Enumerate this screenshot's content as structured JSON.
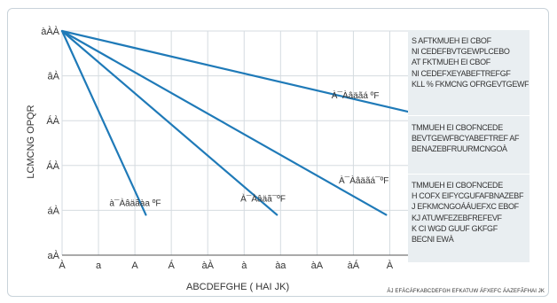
{
  "colors": {
    "series": "#1f7ab8",
    "grid": "#d5dbe0",
    "panel": "#e9eef1"
  },
  "chart_data": {
    "type": "line",
    "xlabel": "ABCDEFGHE ( HAI JK)",
    "ylabel": "LCMCNG OPQR",
    "x_tick_labels": [
      "À",
      "a",
      "A",
      "Á",
      "àÀ",
      "à",
      "àa",
      "àA",
      "àÁ",
      "À"
    ],
    "y_tick_labels": [
      "aÀ",
      "áÀ",
      "ÁÀ",
      "ÁÀ",
      "âÀ",
      "àÀÀ"
    ],
    "xlim": [
      0,
      9.5
    ],
    "ylim": [
      0,
      5
    ],
    "series": [
      {
        "label": "À¯Àâäãá ºF",
        "points": [
          [
            0,
            5
          ],
          [
            9.5,
            3.2
          ]
        ]
      },
      {
        "label": "À¯Àâäãá¯ºF",
        "points": [
          [
            0,
            5
          ],
          [
            8.9,
            0.9
          ]
        ]
      },
      {
        "label": "À¯Àâäã¯ºF",
        "points": [
          [
            0,
            5
          ],
          [
            5.9,
            0.9
          ]
        ]
      },
      {
        "label": "à¯Àâäãàa ºF",
        "points": [
          [
            0,
            5
          ],
          [
            2.3,
            0.9
          ]
        ]
      }
    ]
  },
  "notes": [
    [
      "S AFTKMUEH EI CBOF",
      "NI CEDEFBVTGEWPLCEBO",
      "AT FKTMUEH EI CBOF",
      "NI CEDEFXEYABEFTREFGF",
      "KLL % FKMCNG OFRGEVTGEWF"
    ],
    [
      "TMMUEH EI CBOFNCEDE",
      "BEVTGEWFBCYABEFTREF AF",
      "BENAZEBFRUURMCNGOÀ"
    ],
    [
      "TMMUEH EI CBOFNCEDE",
      "H COFX EIFYCGUFAFBNAZEBF",
      "J EFKMCNGOÁÁUEFXC EBOF",
      "KJ ATUWFEZEBFREFEVF",
      "K CI WGD GUUF GKFGF",
      "BECNI EWÀ"
    ]
  ],
  "footnote": "ÁJ EFÀCÁFKABCDEFGH EFKATUW ÁFXEFC ÁAZEFÃFHAI JK"
}
